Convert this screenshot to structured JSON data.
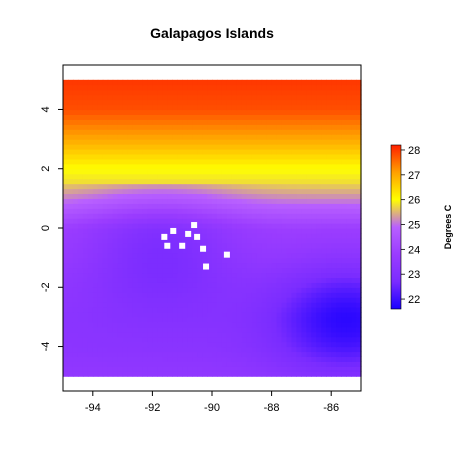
{
  "chart_data": {
    "type": "heatmap",
    "title": "Galapagos Islands",
    "xlabel": "",
    "ylabel": "",
    "xlim": [
      -95,
      -85
    ],
    "ylim": [
      -5.5,
      5.5
    ],
    "data_extent": {
      "x": [
        -95,
        -85
      ],
      "y": [
        -5,
        5
      ]
    },
    "x_ticks": [
      -94,
      -92,
      -90,
      -88,
      -86
    ],
    "y_ticks": [
      4,
      2,
      0,
      -2,
      -4
    ],
    "x_tick_labels": [
      "-94",
      "-92",
      "-90",
      "-88",
      "-86"
    ],
    "y_tick_labels": [
      "4",
      "2",
      "0",
      "-2",
      "-4"
    ],
    "legend": {
      "title": "Degrees C",
      "placement": "right",
      "range": [
        21.6,
        28.2
      ],
      "ticks": [
        22,
        23,
        24,
        25,
        26,
        27,
        28
      ],
      "tick_labels": [
        "22",
        "23",
        "24",
        "25",
        "26",
        "27",
        "28"
      ],
      "colors": [
        "#1a00ff",
        "#7a2cff",
        "#9a3cff",
        "#b860ff",
        "#ffff00",
        "#ffa000",
        "#ff2000"
      ]
    },
    "temperature_by_latitude": [
      {
        "lat": 5,
        "value": 28.0
      },
      {
        "lat": 4,
        "value": 27.8
      },
      {
        "lat": 3,
        "value": 27.0
      },
      {
        "lat": 2.5,
        "value": 26.5
      },
      {
        "lat": 2,
        "value": 26.0
      },
      {
        "lat": 1.6,
        "value": 25.8
      },
      {
        "lat": 1,
        "value": 25.2
      },
      {
        "lat": 0.5,
        "value": 24.6
      },
      {
        "lat": 0,
        "value": 24.0
      },
      {
        "lat": -1,
        "value": 23.8
      },
      {
        "lat": -2,
        "value": 23.5
      },
      {
        "lat": -3,
        "value": 23.3
      },
      {
        "lat": -4,
        "value": 23.3
      },
      {
        "lat": -5,
        "value": 23.5
      }
    ],
    "cold_zones": [
      {
        "name": "southeast",
        "lon": -85.5,
        "lat": -3.0,
        "value": 21.8
      },
      {
        "name": "islands",
        "lon": -91.7,
        "lat": -0.6,
        "value": 22.8
      }
    ],
    "islands": [
      {
        "lon": -91.5,
        "lat": -0.6
      },
      {
        "lon": -91.3,
        "lat": -0.1
      },
      {
        "lon": -91.6,
        "lat": -0.3
      },
      {
        "lon": -90.8,
        "lat": -0.2
      },
      {
        "lon": -90.5,
        "lat": -0.3
      },
      {
        "lon": -90.3,
        "lat": -0.7
      },
      {
        "lon": -89.5,
        "lat": -0.9
      },
      {
        "lon": -90.6,
        "lat": 0.1
      },
      {
        "lon": -90.2,
        "lat": -1.3
      },
      {
        "lon": -91.0,
        "lat": -0.6
      }
    ],
    "colors": {
      "no_data": "#ffffff",
      "axis": "#000000"
    }
  }
}
